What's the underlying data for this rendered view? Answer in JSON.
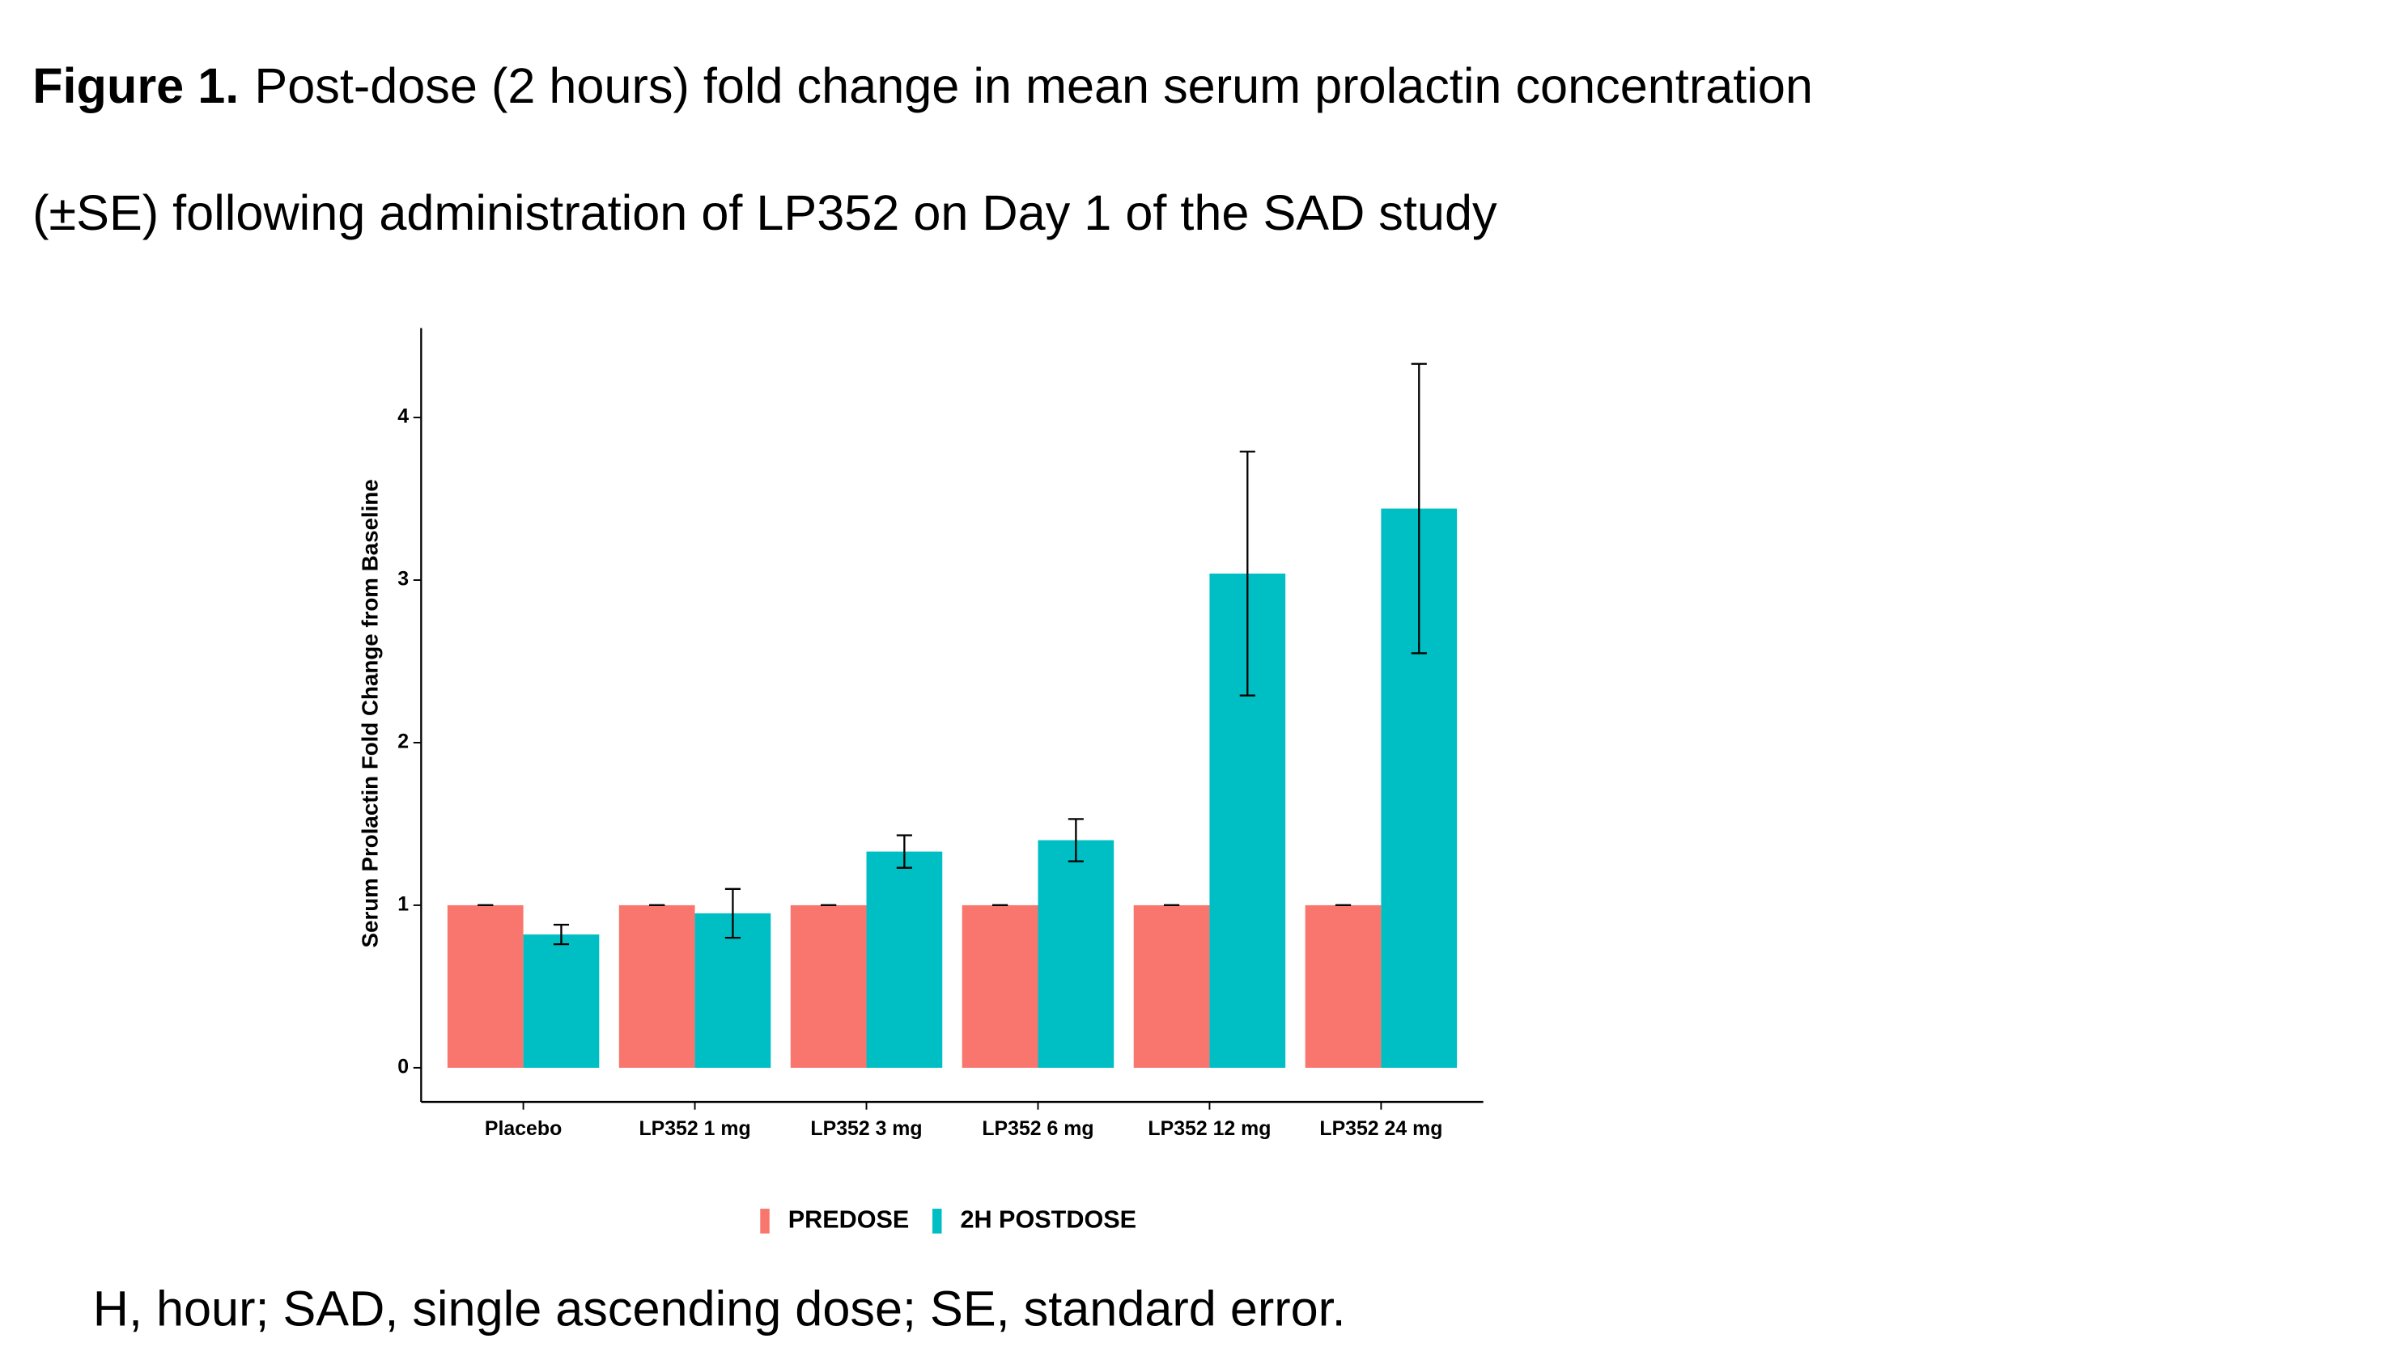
{
  "chart_data": {
    "type": "bar",
    "title_prefix": "Figure 1.",
    "title_line1": "Post-dose (2 hours) fold change in mean serum prolactin concentration",
    "title_line2": "(±SE) following administration of LP352 on Day 1 of the SAD study",
    "ylabel": "Serum Prolactin Fold Change from Baseline",
    "footnote": "H, hour; SAD, single ascending dose; SE, standard error.",
    "categories": [
      "Placebo",
      "LP352 1 mg",
      "LP352 3 mg",
      "LP352 6 mg",
      "LP352 12 mg",
      "LP352 24 mg"
    ],
    "series": [
      {
        "name": "PREDOSE",
        "color": "#f8766d",
        "values": [
          1,
          1,
          1,
          1,
          1,
          1
        ],
        "errors": [
          0,
          0,
          0,
          0,
          0,
          0
        ]
      },
      {
        "name": "2H POSTDOSE",
        "color": "#00bfc4",
        "values": [
          0.82,
          0.95,
          1.33,
          1.4,
          3.04,
          3.44
        ],
        "errors": [
          0.06,
          0.15,
          0.1,
          0.13,
          0.75,
          0.89
        ]
      }
    ],
    "ylim": [
      -0.21,
      4.55
    ],
    "yticks": [
      0,
      1,
      2,
      3,
      4
    ],
    "legend": "bottom"
  }
}
